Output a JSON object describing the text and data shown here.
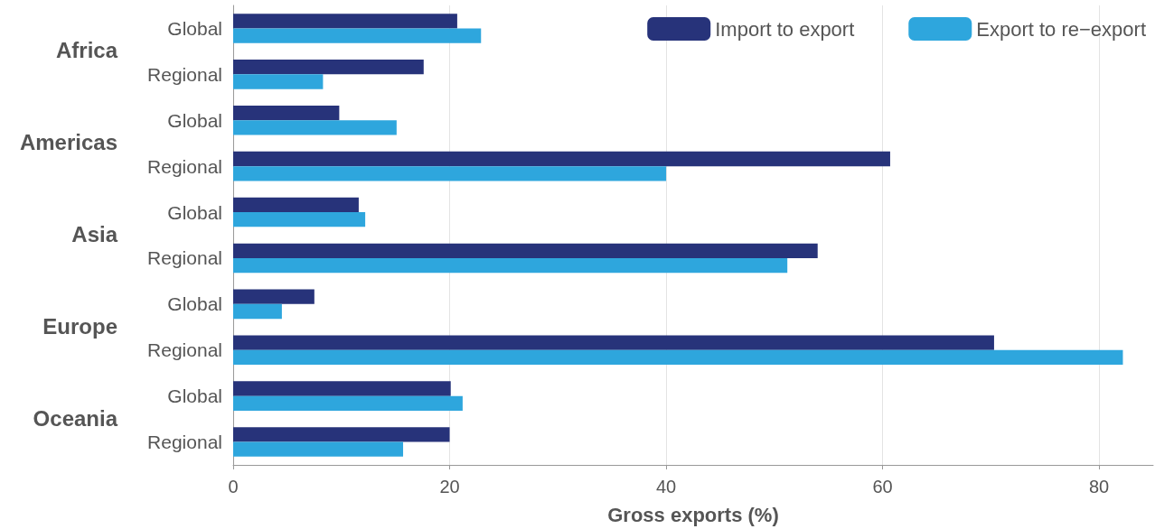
{
  "chart_data": {
    "type": "bar",
    "orientation": "horizontal",
    "xlabel": "Gross exports (%)",
    "categories": [
      "Global",
      "Regional",
      "Global",
      "Regional",
      "Global",
      "Regional",
      "Global",
      "Regional",
      "Global",
      "Regional"
    ],
    "annotations": [
      "Africa",
      "Americas",
      "Asia",
      "Europe",
      "Oceania"
    ],
    "series": [
      {
        "name": "Import to export",
        "color": "#27337a",
        "values": [
          20.7,
          17.6,
          9.8,
          60.7,
          11.6,
          54.0,
          7.5,
          70.3,
          20.1,
          20.0
        ]
      },
      {
        "name": "Export to re−export",
        "color": "#2ea6dd",
        "values": [
          22.9,
          8.3,
          15.1,
          40.0,
          12.2,
          51.2,
          4.5,
          82.2,
          21.2,
          15.7
        ]
      }
    ],
    "xlim": [
      0,
      85
    ],
    "xticks": [
      0,
      20,
      40,
      60,
      80
    ],
    "grid": "x",
    "legend": "top right"
  }
}
